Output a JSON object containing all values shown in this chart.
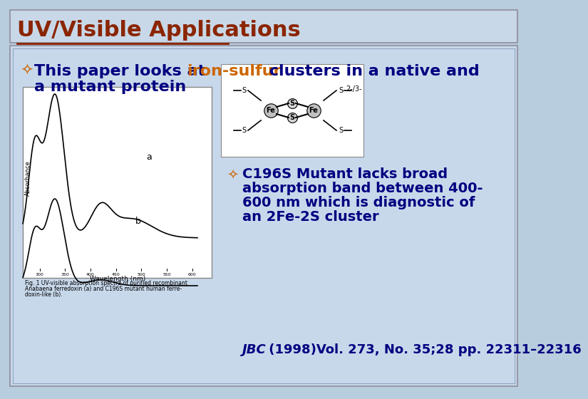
{
  "title": "UV/Visible Applications",
  "title_color": "#8B2500",
  "title_bg": "#C8D8E8",
  "slide_bg": "#B8CEDE",
  "content_bg": "#C8D8EB",
  "border_color": "#9999AA",
  "bullet1_text_parts": [
    {
      "text": "This paper looks at ",
      "color": "#000080",
      "bold": true
    },
    {
      "text": "iron-sulfur",
      "color": "#CC6600",
      "bold": true
    },
    {
      "text": " clusters in a native and",
      "color": "#000080",
      "bold": true
    }
  ],
  "bullet1_line2": "a mutant protein",
  "bullet1_line2_color": "#000080",
  "bullet2_color": "#000080",
  "citation_italic": "JBC",
  "citation_rest": " (1998)Vol. 273, No. 35;28 pp. 22311–22316",
  "citation_color": "#000080",
  "bullet_color": "#CC6600",
  "underline_color": "#8B2500"
}
